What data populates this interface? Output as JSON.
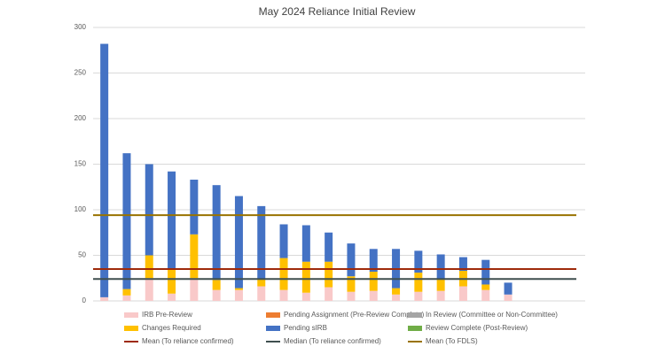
{
  "chart_data": {
    "type": "bar",
    "stacked": true,
    "title": "May 2024 Reliance Initial Review",
    "categories": [
      null,
      null,
      null,
      null,
      null,
      null,
      null,
      null,
      null,
      null,
      null,
      null,
      null,
      null,
      null,
      null,
      null,
      null,
      null
    ],
    "series": [
      {
        "name": "IRB Pre-Review",
        "color": "#f9c9c9",
        "values": [
          4,
          6,
          25,
          8,
          25,
          12,
          12,
          16,
          12,
          9,
          15,
          10,
          11,
          7,
          10,
          11,
          16,
          12,
          7
        ]
      },
      {
        "name": "Pending Assignment (Pre-Review Complete)",
        "color": "#ed7d31",
        "values": [
          0,
          0,
          0,
          0,
          0,
          0,
          0,
          0,
          0,
          0,
          0,
          0,
          0,
          0,
          0,
          0,
          0,
          0,
          0
        ]
      },
      {
        "name": "In Review (Committee or Non-Committee)",
        "color": "#a5a5a5",
        "values": [
          0,
          0,
          0,
          0,
          0,
          0,
          0,
          0,
          0,
          0,
          0,
          0,
          0,
          0,
          0,
          0,
          0,
          0,
          0
        ]
      },
      {
        "name": "Changes Required",
        "color": "#ffc000",
        "values": [
          0,
          7,
          25,
          27,
          48,
          11,
          2,
          8,
          35,
          34,
          28,
          17,
          21,
          7,
          21,
          13,
          17,
          6,
          0
        ]
      },
      {
        "name": "Pending sIRB",
        "color": "#4472c4",
        "values": [
          278,
          149,
          100,
          107,
          60,
          104,
          101,
          80,
          37,
          40,
          32,
          36,
          25,
          43,
          24,
          27,
          15,
          27,
          13
        ]
      },
      {
        "name": "Review Complete (Post-Review)",
        "color": "#70ad47",
        "values": [
          0,
          0,
          0,
          0,
          0,
          0,
          0,
          0,
          0,
          0,
          0,
          0,
          0,
          0,
          0,
          0,
          0,
          0,
          0
        ]
      }
    ],
    "reference_lines": [
      {
        "name": "Mean (To reliance confirmed)",
        "color": "#9e2a0b",
        "value": 35
      },
      {
        "name": "Median (To reliance confirmed)",
        "color": "#3f4f4f",
        "value": 24
      },
      {
        "name": "Mean (To FDLS)",
        "color": "#997300",
        "value": 94
      }
    ],
    "ylim": [
      0,
      300
    ],
    "yticks": [
      0,
      50,
      100,
      150,
      200,
      250,
      300
    ],
    "grid": true
  }
}
